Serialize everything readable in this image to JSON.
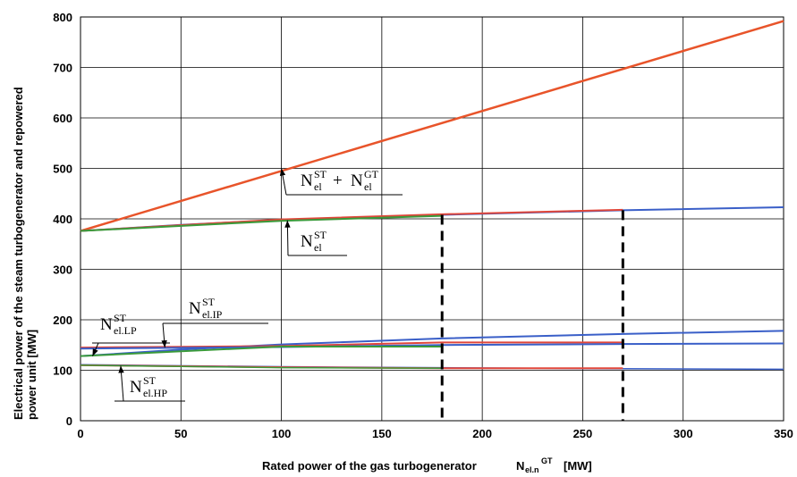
{
  "chart_data": {
    "type": "line",
    "xlabel_main": "Rated power of the gas turbogenerator",
    "xlabel_symbol": "N",
    "xlabel_sub": "el.n",
    "xlabel_sup": "GT",
    "xlabel_unit": "[MW]",
    "ylabel_line1": "Electrical power of the steam turbogenerator and repowered",
    "ylabel_line2": "power unit  [MW]",
    "xlim": [
      0,
      350
    ],
    "ylim": [
      0,
      800
    ],
    "xticks": [
      0,
      50,
      100,
      150,
      200,
      250,
      300,
      350
    ],
    "yticks": [
      0,
      100,
      200,
      300,
      400,
      500,
      600,
      700,
      800
    ],
    "grid": true,
    "series": [
      {
        "color": "#e8542a",
        "width": 2.5,
        "x": [
          0,
          350
        ],
        "y": [
          376,
          792
        ]
      },
      {
        "color": "#3a5fc8",
        "width": 2,
        "x": [
          0,
          50,
          100,
          180,
          270,
          350
        ],
        "y": [
          376,
          388,
          398,
          408,
          417,
          423
        ]
      },
      {
        "color": "#e0463a",
        "width": 2,
        "x": [
          0,
          100,
          180,
          270
        ],
        "y": [
          376,
          399,
          409,
          418
        ]
      },
      {
        "color": "#3a9a3a",
        "width": 2,
        "x": [
          0,
          100,
          180
        ],
        "y": [
          376,
          396,
          406
        ]
      },
      {
        "color": "#3a5fc8",
        "width": 2,
        "x": [
          0,
          50,
          100,
          180,
          270,
          350
        ],
        "y": [
          128,
          141,
          151,
          163,
          172,
          178
        ]
      },
      {
        "color": "#e0463a",
        "width": 2,
        "x": [
          0,
          100,
          180,
          270
        ],
        "y": [
          145,
          148,
          155,
          155
        ]
      },
      {
        "color": "#3a5fc8",
        "width": 2,
        "x": [
          0,
          100,
          180,
          270,
          350
        ],
        "y": [
          143,
          146,
          150,
          152,
          153
        ]
      },
      {
        "color": "#3a9a3a",
        "width": 2,
        "x": [
          0,
          100,
          180
        ],
        "y": [
          128,
          147,
          147
        ]
      },
      {
        "color": "#3a5fc8",
        "width": 1.5,
        "x": [
          0,
          100,
          180,
          270,
          350
        ],
        "y": [
          111,
          107,
          105,
          103,
          102
        ]
      },
      {
        "color": "#e0463a",
        "width": 2,
        "x": [
          0,
          100,
          180,
          270
        ],
        "y": [
          110,
          106,
          104,
          104
        ]
      },
      {
        "color": "#3a9a3a",
        "width": 1.5,
        "x": [
          0,
          100,
          180
        ],
        "y": [
          110,
          105,
          104
        ]
      }
    ],
    "dashed_markers": [
      {
        "x": 180,
        "y": 408
      },
      {
        "x": 270,
        "y": 417
      }
    ],
    "annotations": [
      {
        "id": "sum",
        "main": "N",
        "sub1": "el",
        "sup1": "ST",
        "plus": "+",
        "main2": "N",
        "sub2": "el",
        "sup2": "GT",
        "arrow_to": [
          100,
          500
        ]
      },
      {
        "id": "st",
        "main": "N",
        "sub1": "el",
        "sup1": "ST",
        "arrow_to": [
          103,
          397
        ]
      },
      {
        "id": "lp",
        "main": "N",
        "sub1": "el.LP",
        "sup1": "ST",
        "arrow_to": [
          6,
          128
        ]
      },
      {
        "id": "ip",
        "main": "N",
        "sub1": "el.IP",
        "sup1": "ST",
        "arrow_to": [
          42,
          145
        ]
      },
      {
        "id": "hp",
        "main": "N",
        "sub1": "el.HP",
        "sup1": "ST",
        "arrow_to": [
          20,
          109
        ]
      }
    ]
  }
}
